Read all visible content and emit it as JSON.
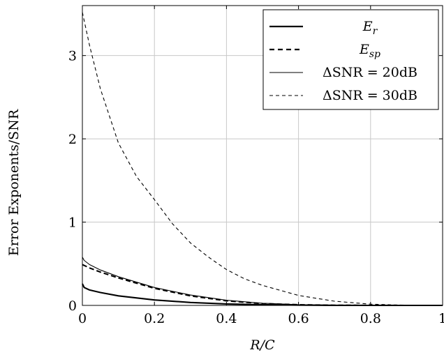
{
  "chart_data": {
    "type": "line",
    "title": "",
    "xlabel": "R/C",
    "ylabel": "Error Exponents/SNR",
    "xlim": [
      0,
      1
    ],
    "ylim": [
      0,
      3.6
    ],
    "xticks": [
      0,
      0.2,
      0.4,
      0.6,
      0.8,
      1
    ],
    "yticks": [
      0,
      1,
      2,
      3
    ],
    "xtick_labels": [
      "0",
      "0.2",
      "0.4",
      "0.6",
      "0.8",
      "1"
    ],
    "ytick_labels": [
      "0",
      "1",
      "2",
      "3"
    ],
    "grid": true,
    "legend_position": "top-right",
    "legend": [
      {
        "label_main": "E",
        "label_sub": "r",
        "style": "solid",
        "weight": "thick"
      },
      {
        "label_main": "E",
        "label_sub": "sp",
        "style": "dashed",
        "weight": "thick"
      },
      {
        "label": "ΔSNR = 20dB",
        "style": "solid",
        "weight": "thin"
      },
      {
        "label": "ΔSNR = 30dB",
        "style": "dashed",
        "weight": "thin"
      }
    ],
    "series": [
      {
        "exponent": "Er",
        "dsnr": "20dB",
        "x": [
          0,
          0.005,
          0.02,
          0.05,
          0.1,
          0.2,
          0.3,
          0.4,
          0.5,
          0.6,
          0.7,
          0.8,
          0.9,
          1.0
        ],
        "y": [
          0.26,
          0.215,
          0.185,
          0.155,
          0.115,
          0.065,
          0.035,
          0.018,
          0.008,
          0.003,
          0.001,
          0.0003,
          0.0001,
          0
        ]
      },
      {
        "exponent": "Esp",
        "dsnr": "20dB",
        "x": [
          0,
          0.005,
          0.02,
          0.05,
          0.1,
          0.2,
          0.3,
          0.4,
          0.5,
          0.6,
          0.7,
          0.8,
          0.9,
          1.0
        ],
        "y": [
          0.49,
          0.48,
          0.45,
          0.4,
          0.33,
          0.205,
          0.115,
          0.055,
          0.022,
          0.008,
          0.002,
          0.0005,
          0.0001,
          0
        ]
      },
      {
        "exponent": "Er",
        "dsnr": "30dB",
        "x": [
          0,
          0.005,
          0.02,
          0.05,
          0.1,
          0.2,
          0.3,
          0.4,
          0.5,
          0.6,
          0.7,
          0.8,
          0.9,
          1.0
        ],
        "y": [
          0.58,
          0.54,
          0.49,
          0.425,
          0.345,
          0.215,
          0.125,
          0.062,
          0.026,
          0.009,
          0.003,
          0.0008,
          0.0002,
          0
        ]
      },
      {
        "exponent": "Esp",
        "dsnr": "30dB",
        "x": [
          0,
          0.02,
          0.05,
          0.1,
          0.15,
          0.2,
          0.25,
          0.3,
          0.35,
          0.4,
          0.45,
          0.5,
          0.6,
          0.7,
          0.8,
          0.9,
          1.0
        ],
        "y": [
          3.52,
          3.12,
          2.6,
          1.95,
          1.55,
          1.27,
          0.98,
          0.75,
          0.58,
          0.43,
          0.32,
          0.24,
          0.12,
          0.05,
          0.015,
          0.002,
          0
        ]
      }
    ]
  }
}
